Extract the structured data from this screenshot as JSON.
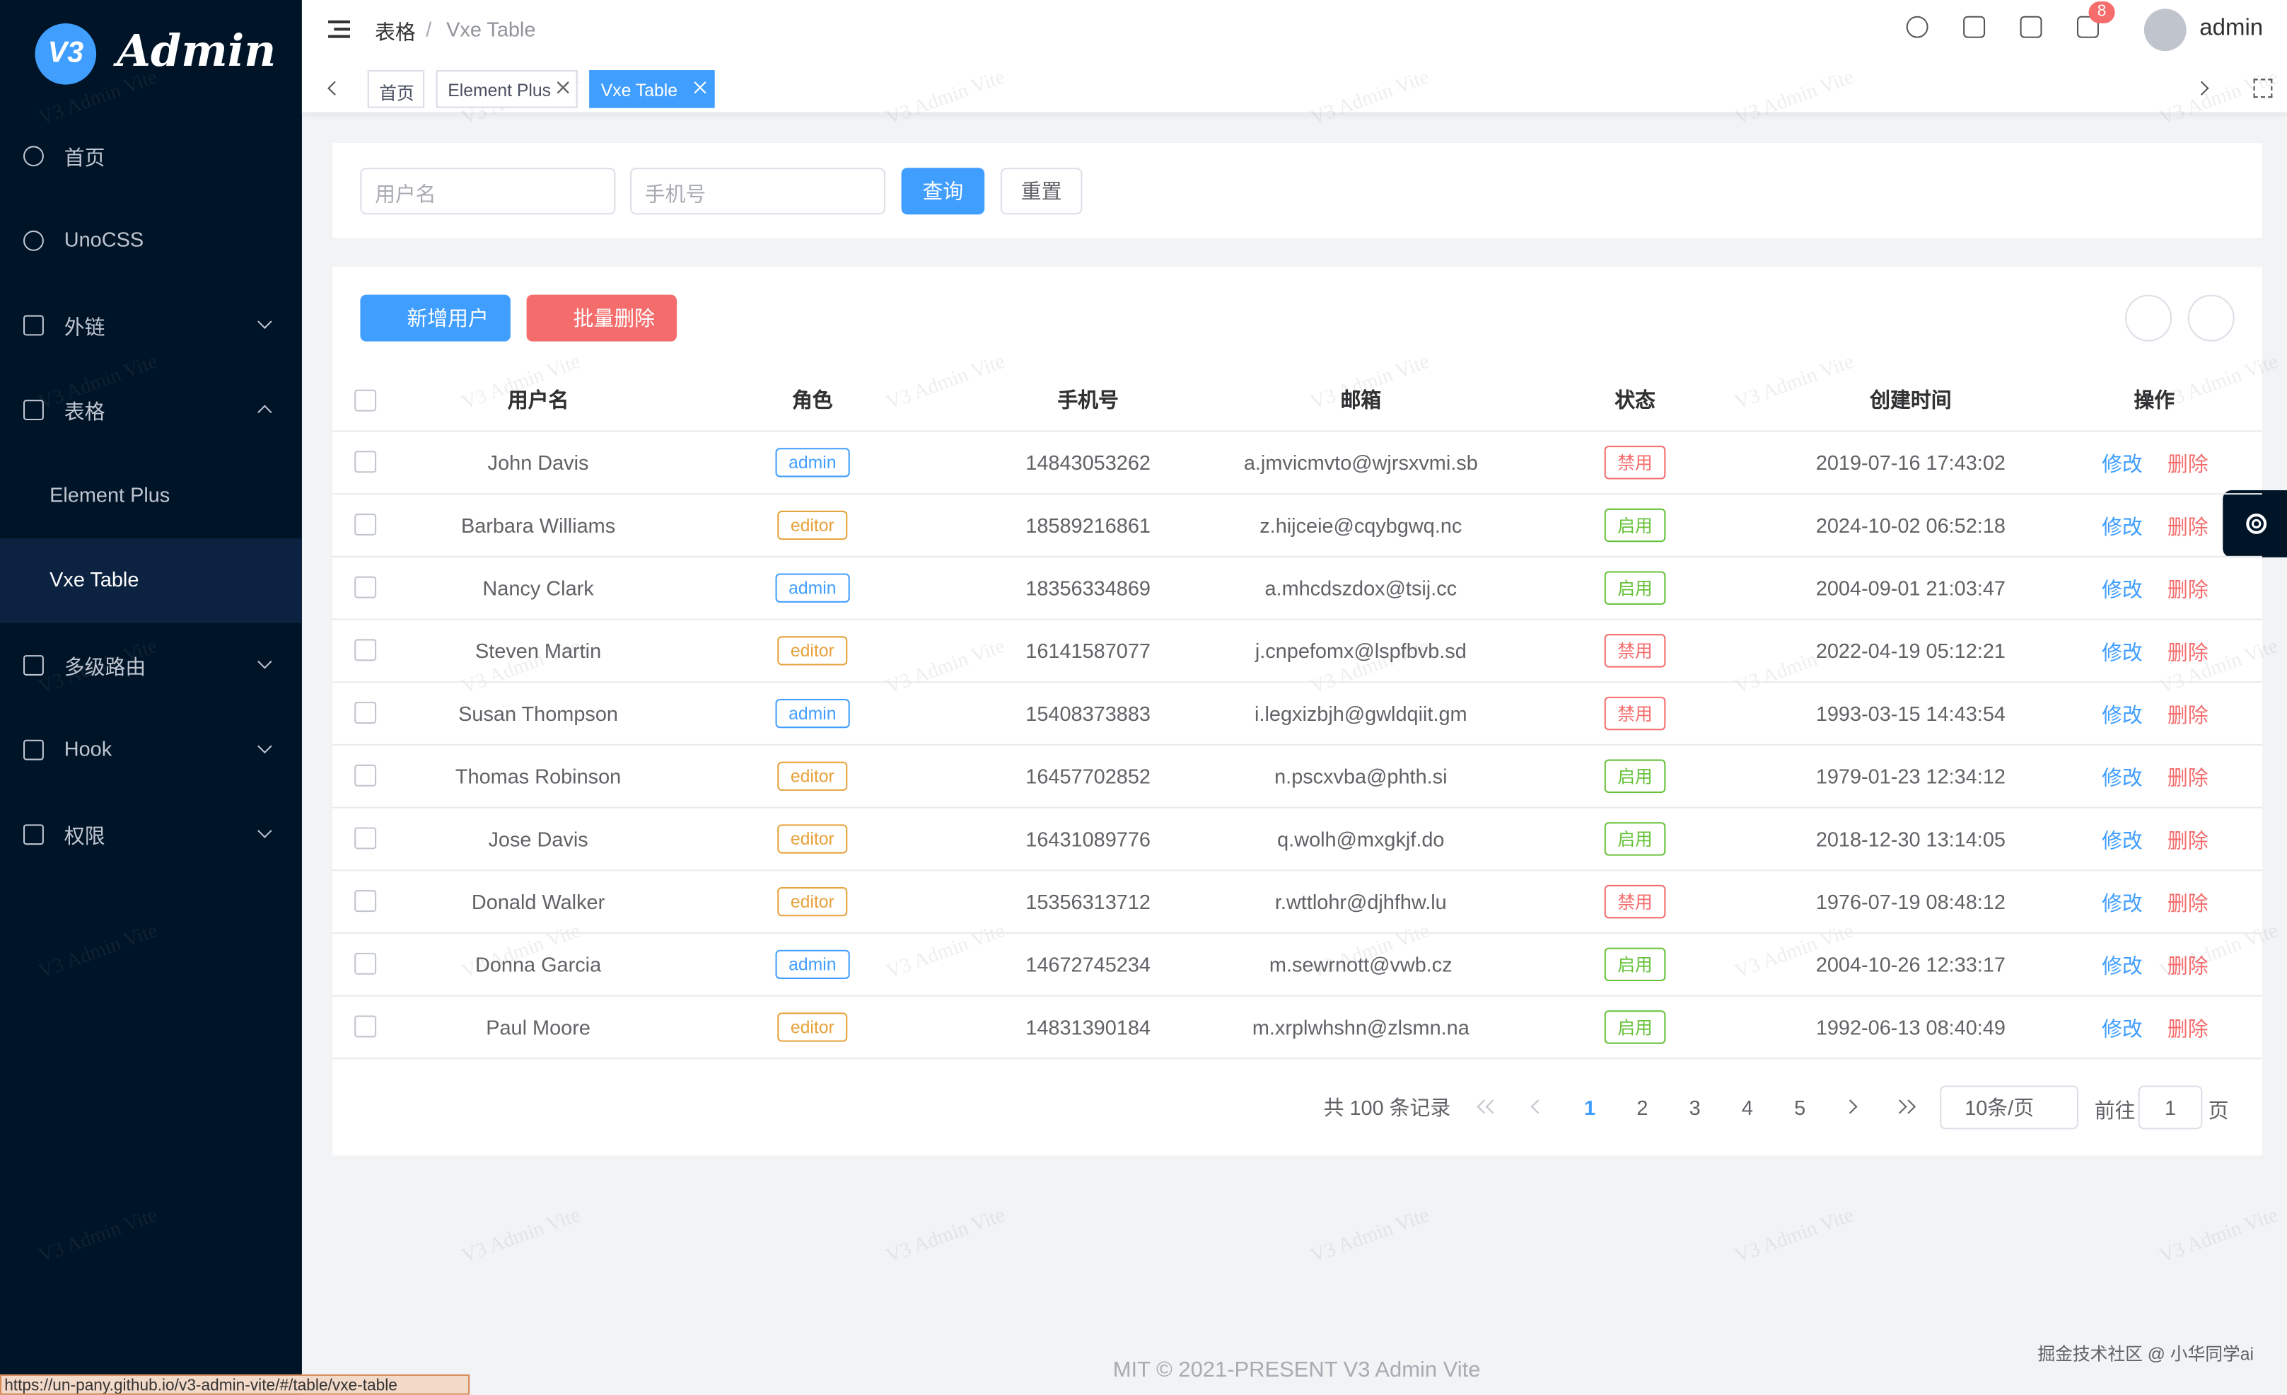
{
  "sidebar": {
    "logo_mark": "V3",
    "logo": "Admin",
    "menu": [
      {
        "label": "首页",
        "icon": "dash"
      },
      {
        "label": "UnoCSS",
        "icon": "dots"
      },
      {
        "label": "外链",
        "icon": "link",
        "arrow": "down"
      },
      {
        "label": "表格",
        "icon": "grid",
        "arrow": "up"
      },
      {
        "label": "Element Plus",
        "sub": true
      },
      {
        "label": "Vxe Table",
        "sub": true,
        "active": true
      },
      {
        "label": "多级路由",
        "icon": "list",
        "arrow": "down"
      },
      {
        "label": "Hook",
        "icon": "tiles",
        "arrow": "down"
      },
      {
        "label": "权限",
        "icon": "lock",
        "arrow": "down"
      }
    ]
  },
  "header": {
    "breadcrumb": [
      "表格",
      "Vxe Table"
    ],
    "separator": "/",
    "badge": "8",
    "user": "admin"
  },
  "tabs": [
    {
      "label": "首页"
    },
    {
      "label": "Element Plus",
      "closable": true
    },
    {
      "label": "Vxe Table",
      "closable": true,
      "active": true
    }
  ],
  "search": {
    "placeholders": [
      "用户名",
      "手机号"
    ],
    "query": "查询",
    "reset": "重置"
  },
  "toolbar": {
    "add": "新增用户",
    "delete": "批量删除"
  },
  "table": {
    "columns": [
      "用户名",
      "角色",
      "手机号",
      "邮箱",
      "状态",
      "创建时间",
      "操作"
    ],
    "actions": [
      "修改",
      "删除"
    ],
    "rows": [
      {
        "name": "John Davis",
        "role": {
          "text": "admin",
          "color": "#409eff"
        },
        "phone": "14843053262",
        "email": "a.jmvicmvto@wjrsxvmi.sb",
        "status": {
          "text": "禁用",
          "color": "#f56c6c"
        },
        "created": "2019-07-16 17:43:02"
      },
      {
        "name": "Barbara Williams",
        "role": {
          "text": "editor",
          "color": "#e6a23c"
        },
        "phone": "18589216861",
        "email": "z.hijceie@cqybgwq.nc",
        "status": {
          "text": "启用",
          "color": "#67c23a"
        },
        "created": "2024-10-02 06:52:18"
      },
      {
        "name": "Nancy Clark",
        "role": {
          "text": "admin",
          "color": "#409eff"
        },
        "phone": "18356334869",
        "email": "a.mhcdszdox@tsij.cc",
        "status": {
          "text": "启用",
          "color": "#67c23a"
        },
        "created": "2004-09-01 21:03:47"
      },
      {
        "name": "Steven Martin",
        "role": {
          "text": "editor",
          "color": "#e6a23c"
        },
        "phone": "16141587077",
        "email": "j.cnpefomx@lspfbvb.sd",
        "status": {
          "text": "禁用",
          "color": "#f56c6c"
        },
        "created": "2022-04-19 05:12:21"
      },
      {
        "name": "Susan Thompson",
        "role": {
          "text": "admin",
          "color": "#409eff"
        },
        "phone": "15408373883",
        "email": "i.legxizbjh@gwldqiit.gm",
        "status": {
          "text": "禁用",
          "color": "#f56c6c"
        },
        "created": "1993-03-15 14:43:54"
      },
      {
        "name": "Thomas Robinson",
        "role": {
          "text": "editor",
          "color": "#e6a23c"
        },
        "phone": "16457702852",
        "email": "n.pscxvba@phth.si",
        "status": {
          "text": "启用",
          "color": "#67c23a"
        },
        "created": "1979-01-23 12:34:12"
      },
      {
        "name": "Jose Davis",
        "role": {
          "text": "editor",
          "color": "#e6a23c"
        },
        "phone": "16431089776",
        "email": "q.wolh@mxgkjf.do",
        "status": {
          "text": "启用",
          "color": "#67c23a"
        },
        "created": "2018-12-30 13:14:05"
      },
      {
        "name": "Donald Walker",
        "role": {
          "text": "editor",
          "color": "#e6a23c"
        },
        "phone": "15356313712",
        "email": "r.wttlohr@djhfhw.lu",
        "status": {
          "text": "禁用",
          "color": "#f56c6c"
        },
        "created": "1976-07-19 08:48:12"
      },
      {
        "name": "Donna Garcia",
        "role": {
          "text": "admin",
          "color": "#409eff"
        },
        "phone": "14672745234",
        "email": "m.sewrnott@vwb.cz",
        "status": {
          "text": "启用",
          "color": "#67c23a"
        },
        "created": "2004-10-26 12:33:17"
      },
      {
        "name": "Paul Moore",
        "role": {
          "text": "editor",
          "color": "#e6a23c"
        },
        "phone": "14831390184",
        "email": "m.xrplwhshn@zlsmn.na",
        "status": {
          "text": "启用",
          "color": "#67c23a"
        },
        "created": "1992-06-13 08:40:49"
      }
    ]
  },
  "pagination": {
    "total": "共 100 条记录",
    "pages": [
      "1",
      "2",
      "3",
      "4",
      "5"
    ],
    "current": 0,
    "size": "10条/页",
    "goto": "前往",
    "page": "1",
    "unit": "页"
  },
  "footer": "MIT © 2021-PRESENT V3 Admin Vite",
  "credit": "掘金技术社区 @ 小华同学ai",
  "status_url": "https://un-pany.github.io/v3-admin-vite/#/table/vxe-table",
  "watermark": "V3 Admin Vite"
}
